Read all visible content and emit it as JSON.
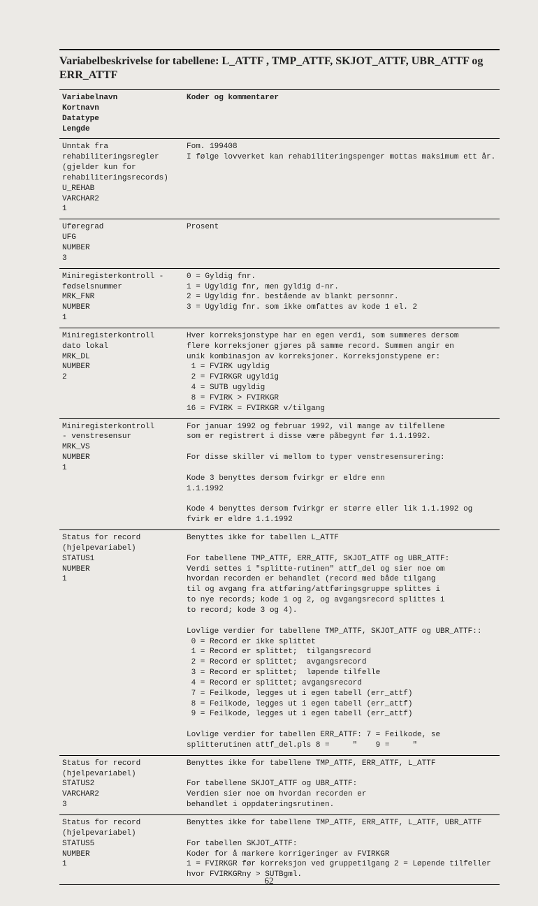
{
  "title_line1": "Variabelbeskrivelse for tabellene: L_ATTF , TMP_ATTF,  SKJOT_ATTF, UBR_ATTF og",
  "title_line2": "ERR_ATTF",
  "header_left": "Variabelnavn\nKortnavn\nDatatype\nLengde",
  "header_right": "Koder og kommentarer",
  "rows": [
    {
      "left": "Unntak fra\nrehabiliteringsregler\n(gjelder kun for\nrehabiliteringsrecords)\nU_REHAB\nVARCHAR2\n1",
      "right": "Fom. 199408\nI følge lovverket kan rehabiliteringspenger mottas maksimum ett år."
    },
    {
      "left": "Uføregrad\nUFG\nNUMBER\n3",
      "right": "Prosent"
    },
    {
      "left": "Miniregisterkontroll -\nfødselsnummer\nMRK_FNR\nNUMBER\n1",
      "right": "0 = Gyldig fnr.\n1 = Ugyldig fnr, men gyldig d-nr.\n2 = Ugyldig fnr. bestående av blankt personnr.\n3 = Ugyldig fnr. som ikke omfattes av kode 1 el. 2"
    },
    {
      "left": "Miniregisterkontroll\ndato lokal\nMRK_DL\nNUMBER\n2",
      "right": "Hver korreksjonstype har en egen verdi, som summeres dersom\nflere korreksjoner gjøres på samme record. Summen angir en\nunik kombinasjon av korreksjoner. Korreksjonstypene er:\n 1 = FVIRK ugyldig\n 2 = FVIRKGR ugyldig\n 4 = SUTB ugyldig\n 8 = FVIRK > FVIRKGR\n16 = FVIRK = FVIRKGR v/tilgang"
    },
    {
      "left": "Miniregisterkontroll\n- venstresensur\nMRK_VS\nNUMBER\n1",
      "right": "For januar 1992 og februar 1992, vil mange av tilfellene\nsom er registrert i disse være påbegynt før 1.1.1992.\n\nFor disse skiller vi mellom to typer venstresensurering:\n\nKode 3 benyttes dersom fvirkgr er eldre enn\n1.1.1992\n\nKode 4 benyttes dersom fvirkgr er større eller lik 1.1.1992 og\nfvirk er eldre 1.1.1992"
    },
    {
      "left": "Status for record\n(hjelpevariabel)\nSTATUS1\nNUMBER\n1",
      "right": "Benyttes ikke for tabellen L_ATTF\n\nFor tabellene TMP_ATTF, ERR_ATTF, SKJOT_ATTF og UBR_ATTF:\nVerdi settes i \"splitte-rutinen\" attf_del og sier noe om\nhvordan recorden er behandlet (record med både tilgang\ntil og avgang fra attføring/attføringsgruppe splittes i\nto nye records; kode 1 og 2, og avgangsrecord splittes i\nto record; kode 3 og 4).\n\nLovlige verdier for tabellene TMP_ATTF, SKJOT_ATTF og UBR_ATTF::\n 0 = Record er ikke splittet\n 1 = Record er splittet;  tilgangsrecord\n 2 = Record er splittet;  avgangsrecord\n 3 = Record er splittet;  løpende tilfelle\n 4 = Record er splittet; avgangsrecord\n 7 = Feilkode, legges ut i egen tabell (err_attf)\n 8 = Feilkode, legges ut i egen tabell (err_attf)\n 9 = Feilkode, legges ut i egen tabell (err_attf)\n\nLovlige verdier for tabellen ERR_ATTF: 7 = Feilkode, se\nsplitterutinen attf_del.pls 8 =     \"    9 =     \""
    },
    {
      "left": "Status for record\n(hjelpevariabel)\nSTATUS2\nVARCHAR2\n3",
      "right": "Benyttes ikke for tabellene TMP_ATTF, ERR_ATTF, L_ATTF\n\nFor tabellene SKJOT_ATTF og UBR_ATTF:\nVerdien sier noe om hvordan recorden er\nbehandlet i oppdateringsrutinen."
    },
    {
      "left": "Status for record\n(hjelpevariabel)\nSTATUS5\nNUMBER\n1",
      "right": "Benyttes ikke for tabellene TMP_ATTF, ERR_ATTF, L_ATTF, UBR_ATTF\n\nFor tabellen SKJOT_ATTF:\nKoder for å markere korrigeringer av FVIRKGR\n1 = FVIRKGR før korreksjon ved gruppetilgang 2 = Løpende tilfeller\nhvor FVIRKGRny > SUTBgml."
    }
  ],
  "page_number": "62"
}
